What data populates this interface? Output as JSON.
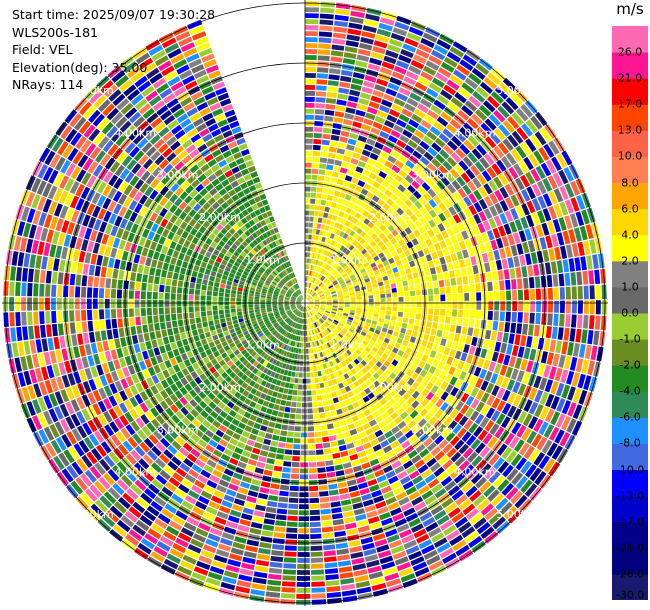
{
  "info": {
    "start_time": "Start time: 2025/09/07 19:30:28",
    "instrument": "WLS200s-181",
    "field": "Field: VEL",
    "elevation": "Elevation(deg): 35.00",
    "nrays": "NRays: 114"
  },
  "chart_data": {
    "type": "heatmap",
    "projection": "polar-ppi",
    "field": "VEL",
    "units": "m/s",
    "elevation_deg": 35.0,
    "n_rays": 114,
    "range_ring_labels": [
      "1.0km",
      "2.00km",
      "3.00km",
      "4.00km",
      "5.00km"
    ],
    "ring_label_km": [
      1,
      2,
      3,
      4,
      5
    ],
    "max_range_km": 5.05,
    "ray_gap_azimuth_deg": [
      340,
      360
    ],
    "colorbar": {
      "unit_label": "m/s",
      "boundaries": [
        -30.0,
        -26.0,
        -21.0,
        -17.0,
        -13.0,
        -10.0,
        -8.0,
        -6.0,
        -4.0,
        -2.0,
        -1.0,
        0.0,
        1.0,
        2.0,
        4.0,
        6.0,
        8.0,
        10.0,
        13.0,
        17.0,
        21.0,
        26.0
      ],
      "tick_labels": [
        "-30.0",
        "-26.0",
        "-21.0",
        "-17.0",
        "-13.0",
        "-10.0",
        "-8.0",
        "-6.0",
        "-4.0",
        "-2.0",
        "-1.0",
        "0.0",
        "1.0",
        "2.0",
        "4.0",
        "6.0",
        "8.0",
        "10.0",
        "13.0",
        "17.0",
        "21.0",
        "26.0"
      ],
      "colors": [
        "#191970",
        "#000080",
        "#00008b",
        "#0000cd",
        "#0000ff",
        "#4169e1",
        "#1e90ff",
        "#2e8b57",
        "#228b22",
        "#6b8e23",
        "#9acd32",
        "#696969",
        "#808080",
        "#ffff00",
        "#ffd700",
        "#ffa500",
        "#ff7f50",
        "#ff6347",
        "#ff4500",
        "#ff0000",
        "#ff1493",
        "#ff69b4"
      ]
    },
    "inner_wind": {
      "description_values_ms": {
        "east_sector": [
          2,
          6
        ],
        "west_sector": [
          -4,
          -1
        ]
      }
    }
  }
}
